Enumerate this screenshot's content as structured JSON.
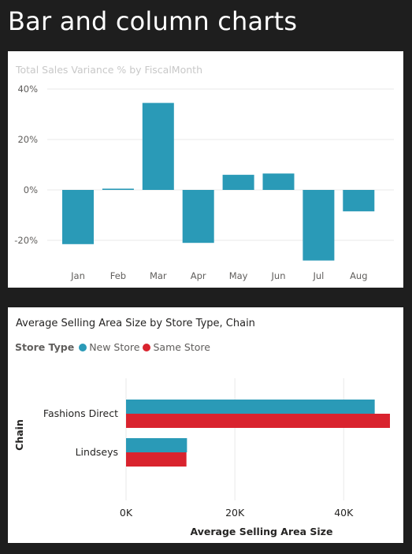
{
  "page": {
    "title": "Bar and column charts"
  },
  "colors": {
    "teal": "#2a9ab7",
    "red": "#d9232e",
    "grid": "#e9e9e9",
    "tick": "#605e5c"
  },
  "chart_data": [
    {
      "type": "bar",
      "orientation": "vertical",
      "title": "Total Sales Variance % by FiscalMonth",
      "categories": [
        "Jan",
        "Feb",
        "Mar",
        "Apr",
        "May",
        "Jun",
        "Jul",
        "Aug"
      ],
      "values": [
        -21.5,
        0.5,
        34.5,
        -21,
        6,
        6.5,
        -28,
        -8.5
      ],
      "ylim": [
        -28,
        40
      ],
      "yticks": [
        40,
        20,
        0,
        -20
      ],
      "ytick_labels": [
        "40%",
        "20%",
        "0%",
        "-20%"
      ],
      "grid": true,
      "color": "#2a9ab7"
    },
    {
      "type": "bar",
      "orientation": "horizontal",
      "title": "Average Selling Area Size by Store Type, Chain",
      "legend": {
        "title": "Store Type",
        "position": "top-left",
        "entries": [
          {
            "label": "New Store",
            "color": "#2a9ab7"
          },
          {
            "label": "Same Store",
            "color": "#d9232e"
          }
        ]
      },
      "categories": [
        "Fashions Direct",
        "Lindseys"
      ],
      "series": [
        {
          "name": "New Store",
          "values": [
            45700,
            11200
          ]
        },
        {
          "name": "Same Store",
          "values": [
            48500,
            11100
          ]
        }
      ],
      "xlim": [
        0,
        48500
      ],
      "xticks": [
        0,
        20000,
        40000
      ],
      "xtick_labels": [
        "0K",
        "20K",
        "40K"
      ],
      "xlabel": "Average Selling Area Size",
      "ylabel": "Chain",
      "grid": true
    }
  ]
}
